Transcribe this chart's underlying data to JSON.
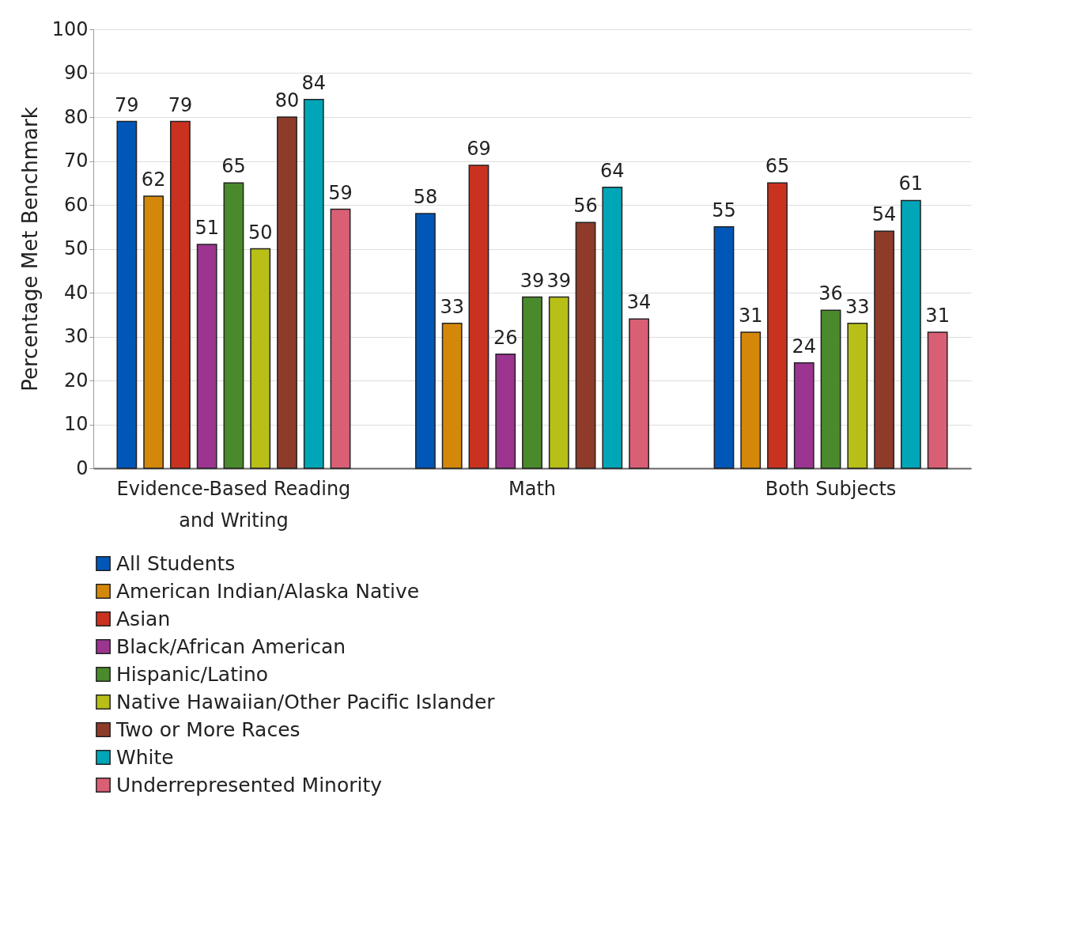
{
  "chart_data": {
    "type": "bar",
    "ylabel": "Percentage Met Benchmark",
    "categories": [
      "Evidence-Based Reading and Writing",
      "Math",
      "Both Subjects"
    ],
    "ylim": [
      0,
      100
    ],
    "yticks": [
      0,
      10,
      20,
      30,
      40,
      50,
      60,
      70,
      80,
      90,
      100
    ],
    "grid": "y",
    "legend": "bottom",
    "data_labels": true,
    "series": [
      {
        "name": "All Students",
        "color": "#0057b8",
        "values": [
          79,
          58,
          55
        ]
      },
      {
        "name": "American Indian/Alaska Native",
        "color": "#d4880a",
        "values": [
          62,
          33,
          31
        ]
      },
      {
        "name": "Asian",
        "color": "#c9321f",
        "values": [
          79,
          69,
          65
        ]
      },
      {
        "name": "Black/African American",
        "color": "#9b3590",
        "values": [
          51,
          26,
          24
        ]
      },
      {
        "name": "Hispanic/Latino",
        "color": "#4a8a2c",
        "values": [
          65,
          39,
          36
        ]
      },
      {
        "name": "Native Hawaiian/Other Pacific Islander",
        "color": "#b8bf17",
        "values": [
          50,
          39,
          33
        ]
      },
      {
        "name": "Two or More Races",
        "color": "#8f3b2a",
        "values": [
          80,
          56,
          54
        ]
      },
      {
        "name": "White",
        "color": "#00a6b8",
        "values": [
          84,
          64,
          61
        ]
      },
      {
        "name": "Underrepresented Minority",
        "color": "#d95f74",
        "values": [
          59,
          34,
          31
        ]
      }
    ]
  }
}
